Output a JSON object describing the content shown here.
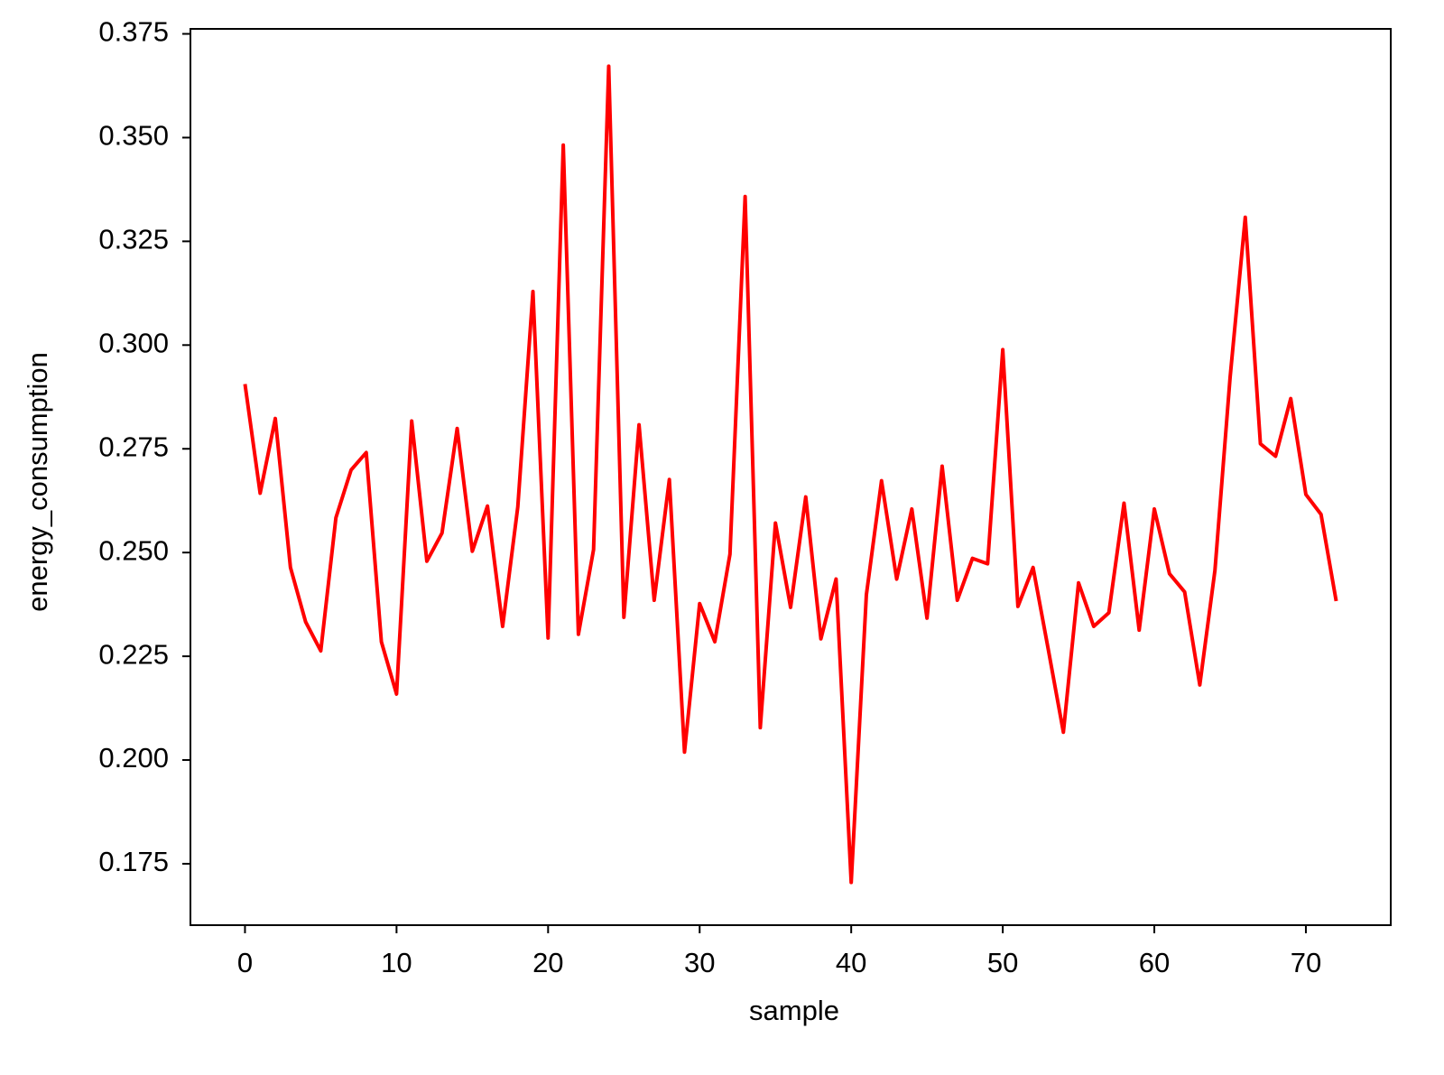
{
  "chart_data": {
    "type": "line",
    "x_label": "sample",
    "y_label": "energy_consumption",
    "x": [
      0,
      1,
      2,
      3,
      4,
      5,
      6,
      7,
      8,
      9,
      10,
      11,
      12,
      13,
      14,
      15,
      16,
      17,
      18,
      19,
      20,
      21,
      22,
      23,
      24,
      25,
      26,
      27,
      28,
      29,
      30,
      31,
      32,
      33,
      34,
      35,
      36,
      37,
      38,
      39,
      40,
      41,
      42,
      43,
      44,
      45,
      46,
      47,
      48,
      49,
      50,
      51,
      52,
      53,
      54,
      55,
      56,
      57,
      58,
      59,
      60,
      61,
      62,
      63,
      64,
      65,
      66,
      67,
      68,
      69,
      70,
      71,
      72
    ],
    "values": [
      0.2906,
      0.2643,
      0.2823,
      0.2464,
      0.2333,
      0.2263,
      0.2584,
      0.2699,
      0.2741,
      0.2285,
      0.2159,
      0.2817,
      0.2479,
      0.2547,
      0.2799,
      0.2503,
      0.2612,
      0.2322,
      0.261,
      0.3129,
      0.2294,
      0.3482,
      0.2303,
      0.2507,
      0.3672,
      0.2344,
      0.2808,
      0.2385,
      0.2676,
      0.2019,
      0.2377,
      0.2285,
      0.2496,
      0.3358,
      0.2078,
      0.2571,
      0.2368,
      0.2634,
      0.2292,
      0.2436,
      0.1705,
      0.2398,
      0.2673,
      0.2436,
      0.2605,
      0.2342,
      0.2708,
      0.2385,
      0.2486,
      0.2473,
      0.2989,
      0.237,
      0.2464,
      0.2267,
      0.2067,
      0.2427,
      0.2322,
      0.2355,
      0.2619,
      0.2313,
      0.2605,
      0.2449,
      0.2405,
      0.2181,
      0.2457,
      0.2922,
      0.3308,
      0.2762,
      0.2732,
      0.2871,
      0.264,
      0.2592,
      0.2383
    ],
    "color": "#ff0000",
    "xlim": [
      -3.6,
      75.6
    ],
    "xticks": [
      0,
      10,
      20,
      30,
      40,
      50,
      60,
      70
    ],
    "ylim": [
      0.1602,
      0.3762
    ],
    "yticks": [
      {
        "value": 0.175,
        "label": "0.175"
      },
      {
        "value": 0.2,
        "label": "0.200"
      },
      {
        "value": 0.225,
        "label": "0.225"
      },
      {
        "value": 0.25,
        "label": "0.250"
      },
      {
        "value": 0.275,
        "label": "0.275"
      },
      {
        "value": 0.3,
        "label": "0.300"
      },
      {
        "value": 0.325,
        "label": "0.325"
      },
      {
        "value": 0.35,
        "label": "0.350"
      },
      {
        "value": 0.375,
        "label": "0.375"
      }
    ],
    "grid": false
  }
}
